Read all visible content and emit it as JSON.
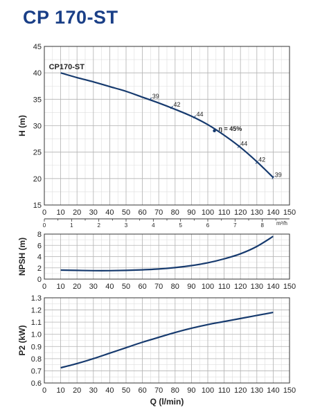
{
  "title": "CP 170-ST",
  "colors": {
    "title": "#1a3f87",
    "curve": "#163a6e",
    "grid": "#b4b4b4",
    "axis": "#333333",
    "text": "#222222"
  },
  "chart_data": [
    {
      "id": "head",
      "type": "line",
      "ylabel": "H (m)",
      "series_label": "CP170-ST",
      "xlim": [
        0,
        150
      ],
      "ylim": [
        15,
        45
      ],
      "xticks": [
        0,
        10,
        20,
        30,
        40,
        50,
        60,
        70,
        80,
        90,
        100,
        110,
        120,
        130,
        140,
        150
      ],
      "yticks": [
        15,
        20,
        25,
        30,
        35,
        40,
        45
      ],
      "secondary_x": {
        "unit": "m³/h",
        "ticks": [
          0,
          1,
          2,
          3,
          4,
          5,
          6,
          7,
          8
        ],
        "tick_labels": [
          "0",
          "1",
          "2",
          "3",
          "4",
          "5",
          "6",
          "7",
          "8"
        ]
      },
      "grid": true,
      "x": [
        10,
        20,
        30,
        40,
        50,
        60,
        70,
        80,
        90,
        100,
        110,
        120,
        130,
        140
      ],
      "y": [
        40.0,
        39.1,
        38.3,
        37.4,
        36.5,
        35.4,
        34.3,
        33.1,
        31.8,
        30.2,
        28.2,
        25.9,
        23.2,
        20.2
      ],
      "efficiency_labels": [
        {
          "x": 66,
          "y": 35.2,
          "label": "39"
        },
        {
          "x": 79,
          "y": 33.6,
          "label": "42"
        },
        {
          "x": 93,
          "y": 31.8,
          "label": "44"
        },
        {
          "x": 107,
          "y": 29.3,
          "label": "η = 45%",
          "best": true
        },
        {
          "x": 120,
          "y": 26.2,
          "label": "44"
        },
        {
          "x": 131,
          "y": 23.2,
          "label": "42"
        },
        {
          "x": 141,
          "y": 20.3,
          "label": "39"
        }
      ]
    },
    {
      "id": "npsh",
      "type": "line",
      "ylabel": "NPSH (m)",
      "xlim": [
        0,
        150
      ],
      "ylim": [
        0,
        8
      ],
      "xticks": [
        0,
        10,
        20,
        30,
        40,
        50,
        60,
        70,
        80,
        90,
        100,
        110,
        120,
        130,
        140,
        150
      ],
      "yticks": [
        0,
        2,
        4,
        6,
        8
      ],
      "grid": true,
      "x": [
        10,
        20,
        30,
        40,
        50,
        60,
        70,
        80,
        90,
        100,
        110,
        120,
        130,
        140
      ],
      "y": [
        1.6,
        1.55,
        1.5,
        1.5,
        1.55,
        1.65,
        1.8,
        2.05,
        2.4,
        2.9,
        3.6,
        4.5,
        5.8,
        7.6
      ]
    },
    {
      "id": "power",
      "type": "line",
      "ylabel": "P2 (kW)",
      "xlabel": "Q (l/min)",
      "xlim": [
        0,
        150
      ],
      "ylim": [
        0.6,
        1.3
      ],
      "xticks": [
        0,
        10,
        20,
        30,
        40,
        50,
        60,
        70,
        80,
        90,
        100,
        110,
        120,
        130,
        140,
        150
      ],
      "yticks": [
        0.6,
        0.7,
        0.8,
        0.9,
        1.0,
        1.1,
        1.2,
        1.3
      ],
      "ytick_labels": [
        "0.6",
        "0.7",
        "0.8",
        "0.9",
        "1.0",
        "1.1",
        "1.2",
        "1.3"
      ],
      "grid": true,
      "x": [
        10,
        20,
        30,
        40,
        50,
        60,
        70,
        80,
        90,
        100,
        110,
        120,
        130,
        140
      ],
      "y": [
        0.725,
        0.76,
        0.8,
        0.845,
        0.89,
        0.935,
        0.975,
        1.015,
        1.05,
        1.08,
        1.105,
        1.13,
        1.155,
        1.18
      ]
    }
  ]
}
